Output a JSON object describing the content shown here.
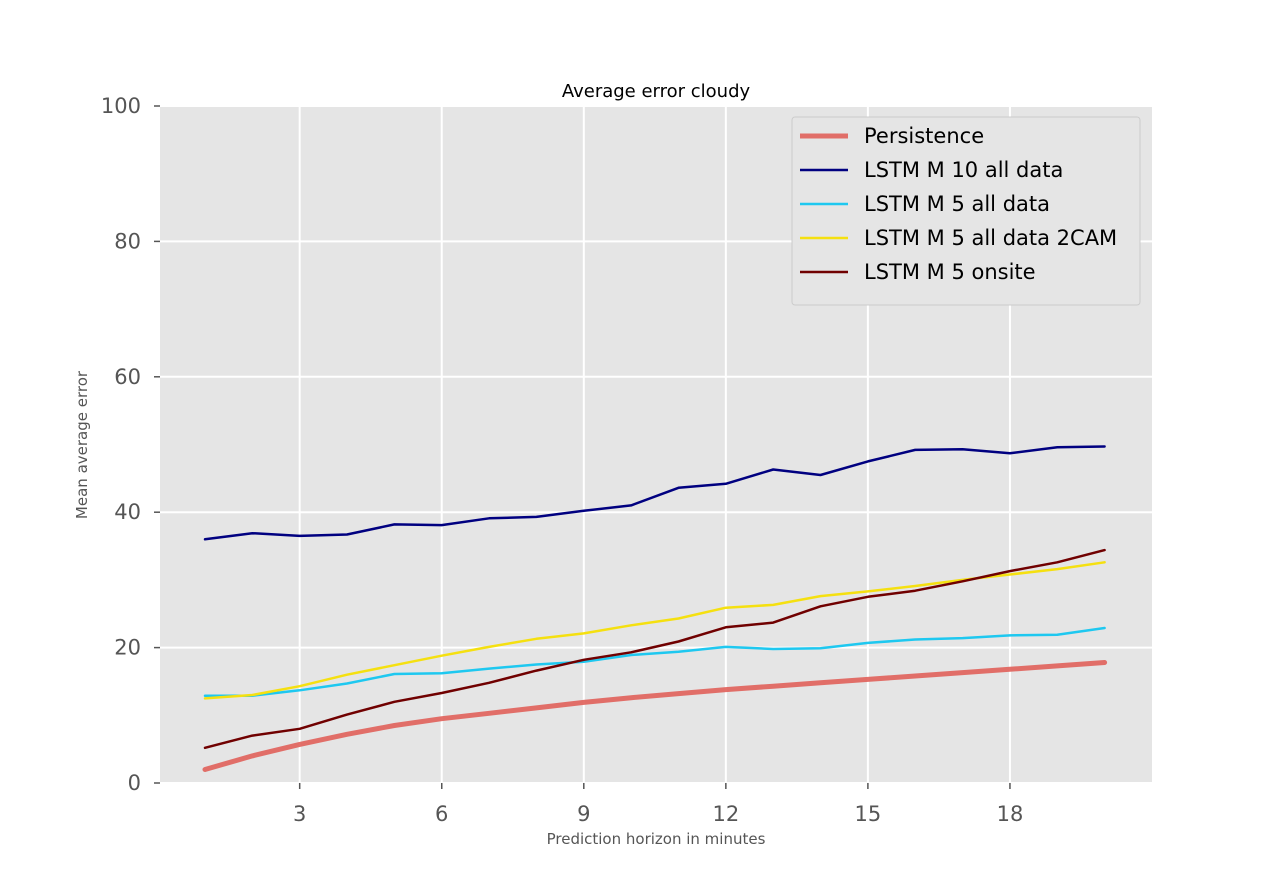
{
  "chart_data": {
    "type": "line",
    "title": "Average error cloudy",
    "xlabel": "Prediction horizon in minutes",
    "ylabel": "Mean average error",
    "x": [
      1,
      2,
      3,
      4,
      5,
      6,
      7,
      8,
      9,
      10,
      11,
      12,
      13,
      14,
      15,
      16,
      17,
      18,
      19,
      20
    ],
    "xlim": [
      0.05,
      21
    ],
    "ylim": [
      0,
      100
    ],
    "xticks": [
      3,
      6,
      9,
      12,
      15,
      18
    ],
    "yticks": [
      0,
      20,
      40,
      60,
      80,
      100
    ],
    "grid": true,
    "legend_position": "top-right",
    "series": [
      {
        "name": "Persistence",
        "color": "#e0605a",
        "values": [
          2.0,
          4.0,
          5.7,
          7.2,
          8.5,
          9.5,
          10.3,
          11.1,
          11.9,
          12.6,
          13.2,
          13.8,
          14.3,
          14.8,
          15.3,
          15.8,
          16.3,
          16.8,
          17.3,
          17.8
        ]
      },
      {
        "name": "LSTM M 10 all data",
        "color": "#000080",
        "values": [
          36.0,
          36.9,
          36.5,
          36.7,
          38.2,
          38.1,
          39.1,
          39.3,
          40.2,
          41.0,
          43.6,
          44.2,
          46.3,
          45.5,
          47.5,
          49.2,
          49.3,
          48.7,
          49.6,
          49.7
        ]
      },
      {
        "name": "LSTM M 5 all data",
        "color": "#1ec8f0",
        "values": [
          12.9,
          12.9,
          13.7,
          14.7,
          16.1,
          16.2,
          16.9,
          17.5,
          17.9,
          18.9,
          19.4,
          20.1,
          19.8,
          19.9,
          20.7,
          21.2,
          21.4,
          21.8,
          21.9,
          22.9
        ]
      },
      {
        "name": "LSTM M 5 all data 2CAM",
        "color": "#f5e010",
        "values": [
          12.5,
          13.0,
          14.3,
          16.0,
          17.4,
          18.8,
          20.1,
          21.3,
          22.1,
          23.3,
          24.3,
          25.9,
          26.3,
          27.6,
          28.3,
          29.1,
          30.0,
          30.8,
          31.6,
          32.6
        ]
      },
      {
        "name": "LSTM M 5 onsite",
        "color": "#700000",
        "values": [
          5.2,
          7.0,
          8.0,
          10.1,
          12.0,
          13.3,
          14.8,
          16.6,
          18.2,
          19.3,
          20.9,
          23.0,
          23.7,
          26.1,
          27.5,
          28.4,
          29.8,
          31.3,
          32.6,
          34.4
        ]
      }
    ]
  }
}
